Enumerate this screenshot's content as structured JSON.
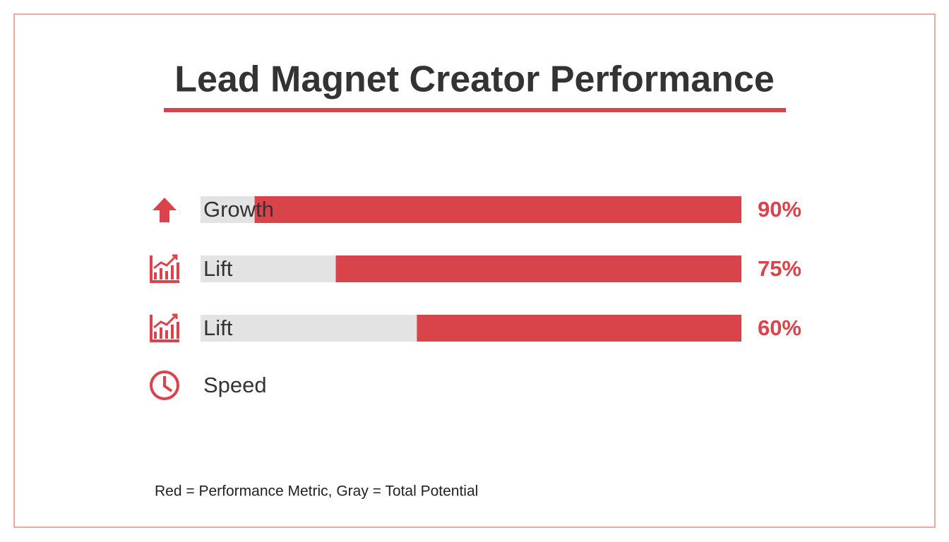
{
  "chart_data": {
    "type": "bar",
    "title": "Lead Magnet Creator Performance",
    "categories": [
      "Growth",
      "Lift",
      "Lift",
      "Speed"
    ],
    "values": [
      90,
      75,
      60,
      null
    ],
    "value_labels": [
      "90%",
      "75%",
      "60%",
      null
    ],
    "xlim": [
      0,
      100
    ],
    "color": "#d9434a",
    "track_color": "#e3e3e3",
    "note": "Red = Performance Metric, Gray = Total Potential"
  }
}
